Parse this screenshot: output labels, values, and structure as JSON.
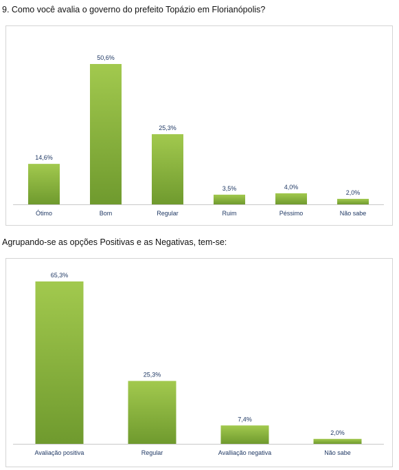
{
  "colors": {
    "bar_top": "#a2c94e",
    "bar_bottom": "#6f9a2e",
    "label": "#1f3864",
    "axis": "#c8c8c8",
    "border": "#d4d4d4"
  },
  "question": "9. Como você avalia o governo do prefeito Topázio em Florianópolis?",
  "grouping_text": "Agrupando-se as opções Positivas e as Negativas, tem-se:",
  "chart_data": [
    {
      "type": "bar",
      "title": "",
      "categories": [
        "Ótimo",
        "Bom",
        "Regular",
        "Ruim",
        "Péssimo",
        "Não sabe"
      ],
      "values": [
        14.6,
        50.6,
        25.3,
        3.5,
        4.0,
        2.0
      ],
      "value_labels": [
        "14,6%",
        "50,6%",
        "25,3%",
        "3,5%",
        "4,0%",
        "2,0%"
      ],
      "ylim": [
        0,
        50.6
      ],
      "grid": false,
      "legend": "none"
    },
    {
      "type": "bar",
      "title": "",
      "categories": [
        "Avaliação positiva",
        "Regular",
        "Avalliação negativa",
        "Não sabe"
      ],
      "values": [
        65.3,
        25.3,
        7.4,
        2.0
      ],
      "value_labels": [
        "65,3%",
        "25,3%",
        "7,4%",
        "2,0%"
      ],
      "ylim": [
        0,
        65.3
      ],
      "grid": false,
      "legend": "none"
    }
  ]
}
